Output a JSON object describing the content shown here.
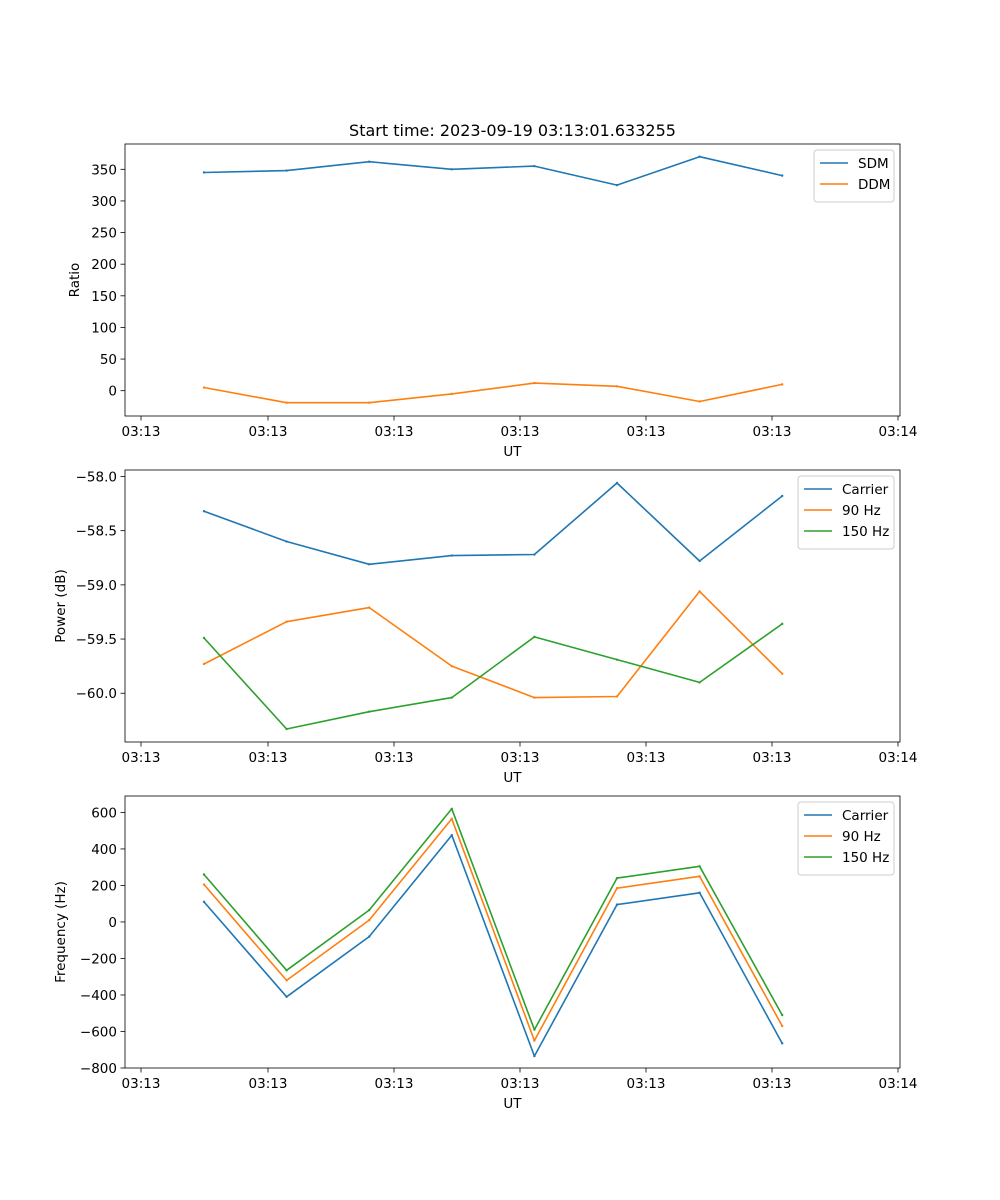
{
  "chart_data": [
    {
      "type": "line",
      "title": "Start time: 2023-09-19 03:13:01.633255",
      "xlabel": "UT",
      "ylabel": "Ratio",
      "x_tick_labels": [
        "03:13",
        "03:13",
        "03:13",
        "03:13",
        "03:13",
        "03:13",
        "03:14"
      ],
      "y_ticks": [
        0,
        50,
        100,
        150,
        200,
        250,
        300,
        350
      ],
      "ylim": [
        -40,
        390
      ],
      "legend_position": "upper right",
      "series": [
        {
          "name": "SDM",
          "color": "#1f77b4",
          "values": [
            345,
            348,
            362,
            350,
            355,
            325,
            370,
            340
          ]
        },
        {
          "name": "DDM",
          "color": "#ff7f0e",
          "values": [
            5,
            -19,
            -19,
            -5,
            12,
            7,
            -17,
            10
          ]
        }
      ]
    },
    {
      "type": "line",
      "title": "",
      "xlabel": "UT",
      "ylabel": "Power (dB)",
      "x_tick_labels": [
        "03:13",
        "03:13",
        "03:13",
        "03:13",
        "03:13",
        "03:13",
        "03:14"
      ],
      "y_ticks": [
        -60.0,
        -59.5,
        -59.0,
        -58.5,
        -58.0
      ],
      "y_tick_labels": [
        "−60.0",
        "−59.5",
        "−59.0",
        "−58.5",
        "−58.0"
      ],
      "ylim": [
        -60.45,
        -57.94
      ],
      "legend_position": "upper right",
      "series": [
        {
          "name": "Carrier",
          "color": "#1f77b4",
          "values": [
            -58.32,
            -58.6,
            -58.81,
            -58.73,
            -58.72,
            -58.06,
            -58.78,
            -58.18
          ]
        },
        {
          "name": "90 Hz",
          "color": "#ff7f0e",
          "values": [
            -59.73,
            -59.34,
            -59.21,
            -59.75,
            -60.04,
            -60.03,
            -59.06,
            -59.82
          ]
        },
        {
          "name": "150 Hz",
          "color": "#2ca02c",
          "values": [
            -59.49,
            -60.33,
            -60.17,
            -60.04,
            -59.48,
            -59.69,
            -59.9,
            -59.36
          ]
        }
      ]
    },
    {
      "type": "line",
      "title": "",
      "xlabel": "UT",
      "ylabel": "Frequency (Hz)",
      "x_tick_labels": [
        "03:13",
        "03:13",
        "03:13",
        "03:13",
        "03:13",
        "03:13",
        "03:14"
      ],
      "y_ticks": [
        -800,
        -600,
        -400,
        -200,
        0,
        200,
        400,
        600
      ],
      "y_tick_labels": [
        "−800",
        "−600",
        "−400",
        "−200",
        "0",
        "200",
        "400",
        "600"
      ],
      "ylim": [
        -800,
        690
      ],
      "legend_position": "upper right",
      "series": [
        {
          "name": "Carrier",
          "color": "#1f77b4",
          "values": [
            110,
            -410,
            -80,
            475,
            -735,
            95,
            160,
            -665
          ]
        },
        {
          "name": "90 Hz",
          "color": "#ff7f0e",
          "values": [
            205,
            -320,
            10,
            565,
            -650,
            185,
            250,
            -570
          ]
        },
        {
          "name": "150 Hz",
          "color": "#2ca02c",
          "values": [
            260,
            -265,
            65,
            620,
            -590,
            240,
            305,
            -510
          ]
        }
      ]
    }
  ]
}
